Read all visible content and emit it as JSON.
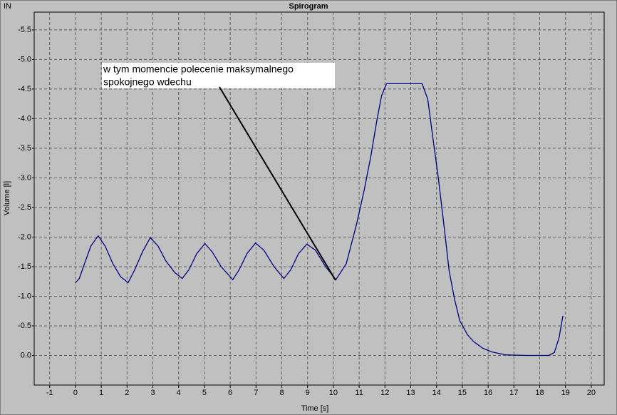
{
  "chart_data": {
    "type": "line",
    "title": "Spirogram",
    "corner_label": "IN",
    "x_label": "Time [s]",
    "y_label": "Volume [l]",
    "x": [
      0,
      0.15,
      0.35,
      0.6,
      0.88,
      1.15,
      1.45,
      1.75,
      2.04,
      2.3,
      2.6,
      2.9,
      3.2,
      3.5,
      3.85,
      4.14,
      4.4,
      4.7,
      5.02,
      5.3,
      5.65,
      6.1,
      6.35,
      6.65,
      6.98,
      7.3,
      7.7,
      8.08,
      8.35,
      8.65,
      8.97,
      9.3,
      9.7,
      10.1,
      10.5,
      10.9,
      11.2,
      11.45,
      11.7,
      11.87,
      12.06,
      13.44,
      13.66,
      13.85,
      14.07,
      14.3,
      14.49,
      14.7,
      14.9,
      15.2,
      15.45,
      15.8,
      16.14,
      16.69,
      17.5,
      18.35,
      18.57,
      18.75,
      18.9
    ],
    "series": [
      {
        "name": "Volume",
        "color": "#000080",
        "values": [
          -1.23,
          -1.3,
          -1.55,
          -1.85,
          -2.02,
          -1.85,
          -1.55,
          -1.33,
          -1.23,
          -1.45,
          -1.75,
          -1.99,
          -1.85,
          -1.6,
          -1.4,
          -1.3,
          -1.45,
          -1.72,
          -1.89,
          -1.75,
          -1.5,
          -1.28,
          -1.45,
          -1.72,
          -1.9,
          -1.78,
          -1.5,
          -1.3,
          -1.45,
          -1.72,
          -1.88,
          -1.78,
          -1.5,
          -1.28,
          -1.55,
          -2.22,
          -2.8,
          -3.36,
          -4.0,
          -4.39,
          -4.59,
          -4.59,
          -4.33,
          -3.7,
          -3.0,
          -2.15,
          -1.43,
          -0.95,
          -0.59,
          -0.35,
          -0.23,
          -0.12,
          -0.06,
          -0.01,
          0,
          0,
          -0.05,
          -0.3,
          -0.67
        ]
      }
    ],
    "xlim": [
      -1.6,
      20.5
    ],
    "xticks": [
      -1,
      0,
      1,
      2,
      3,
      4,
      5,
      6,
      7,
      8,
      9,
      10,
      11,
      12,
      13,
      14,
      15,
      16,
      17,
      18,
      19,
      20
    ],
    "ylim": [
      0.5,
      -5.8
    ],
    "yticks": [
      {
        "value": 0,
        "label": "0.0"
      },
      -0.5,
      {
        "value": -1,
        "label": "-1.0"
      },
      -1.5,
      {
        "value": -2,
        "label": "-2.0"
      },
      -2.5,
      {
        "value": -3,
        "label": "-3.0"
      },
      -3.5,
      {
        "value": -4,
        "label": "-4.0"
      },
      -4.5,
      {
        "value": -5,
        "label": "-5.0"
      },
      -5.5
    ],
    "grid": true,
    "annotation": {
      "lines": [
        "w tym momencie polecenie maksymalnego",
        "spokojnego wdechu"
      ]
    }
  }
}
